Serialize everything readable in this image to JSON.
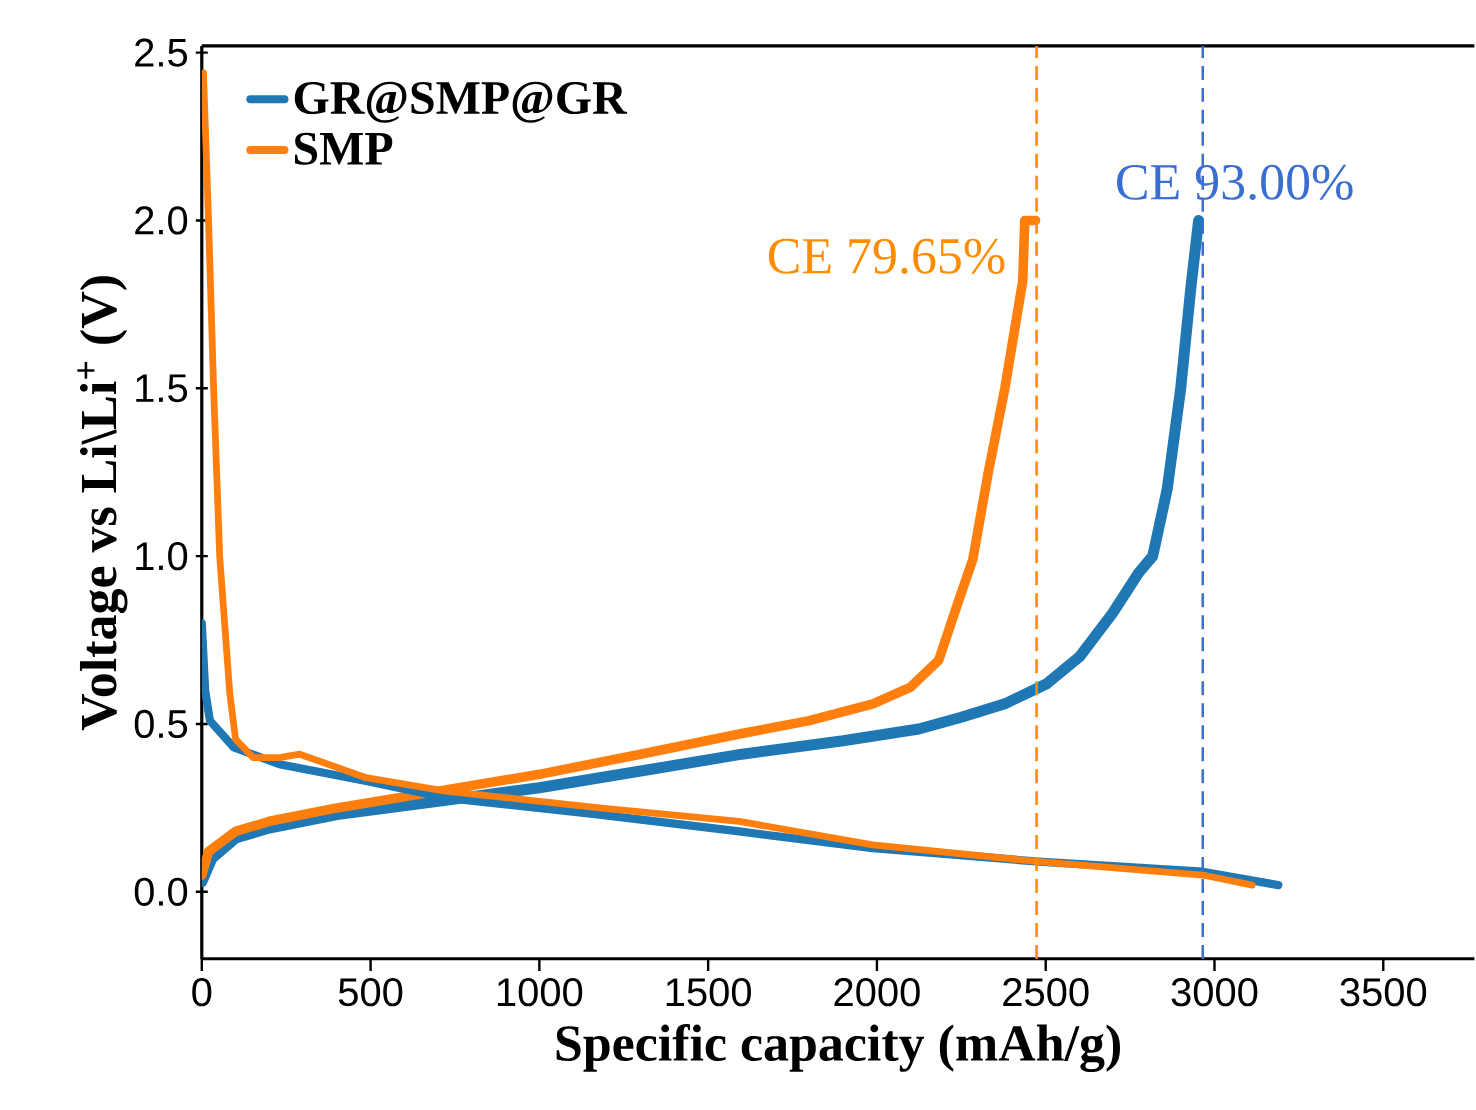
{
  "chart_data": {
    "type": "line",
    "xlabel": "Specific capacity (mAh/g)",
    "ylabel": "Voltage vs Li\\Li$^{+}$ (V)",
    "xlim": [
      0,
      3770
    ],
    "ylim": [
      -0.2,
      2.52
    ],
    "xticks": [
      0,
      500,
      1000,
      1500,
      2000,
      2500,
      3000,
      3500
    ],
    "yticks": [
      {
        "value": 0,
        "label": "0.0"
      },
      0.5,
      {
        "value": 1,
        "label": "1.0"
      },
      1.5,
      {
        "value": 2,
        "label": "2.0"
      },
      2.5
    ],
    "legend": "top left",
    "marker": "none",
    "line_style": "solid",
    "series": [
      {
        "name": "GR@SMP@GR",
        "color": "#1f77b4",
        "x": [
          0,
          30,
          100,
          200,
          400,
          700,
          1000,
          1300,
          1600,
          1900,
          2124,
          2250,
          2379,
          2503,
          2600,
          2698,
          2775,
          2817,
          2860,
          2900,
          2930,
          2953
        ],
        "values": [
          0.03,
          0.1,
          0.16,
          0.19,
          0.23,
          0.27,
          0.31,
          0.36,
          0.41,
          0.45,
          0.485,
          0.52,
          0.56,
          0.62,
          0.7,
          0.83,
          0.95,
          1.0,
          1.2,
          1.5,
          1.8,
          2.0
        ]
      },
      {
        "name": "SMP",
        "color": "#ff7f0e",
        "x": [
          0,
          20,
          100,
          200,
          400,
          700,
          1000,
          1300,
          1592,
          1800,
          1988,
          2100,
          2183,
          2243,
          2284,
          2330,
          2379,
          2432,
          2438,
          2470
        ],
        "values": [
          0.05,
          0.12,
          0.18,
          0.21,
          0.25,
          0.3,
          0.35,
          0.41,
          0.47,
          0.51,
          0.56,
          0.61,
          0.69,
          0.87,
          0.99,
          1.25,
          1.5,
          1.82,
          2.0,
          2.0
        ]
      },
      {
        "color": "#1f77b4",
        "x": [
          0,
          10,
          24,
          95,
          230,
          487,
          722,
          1178,
          1592,
          1988,
          2479,
          2965,
          3189
        ],
        "values": [
          0.8,
          0.6,
          0.51,
          0.43,
          0.38,
          0.33,
          0.28,
          0.23,
          0.18,
          0.13,
          0.09,
          0.06,
          0.02
        ]
      },
      {
        "color": "#ff7f0e",
        "x": [
          5,
          20,
          35,
          53,
          83,
          100,
          152,
          230,
          290,
          487,
          722,
          1178,
          1592,
          1988,
          2479,
          2965,
          3112
        ],
        "values": [
          2.44,
          2.0,
          1.5,
          1.0,
          0.59,
          0.455,
          0.4,
          0.4,
          0.41,
          0.34,
          0.3,
          0.25,
          0.21,
          0.14,
          0.09,
          0.05,
          0.02
        ]
      }
    ],
    "ref_lines": [
      {
        "axis": "x",
        "value": 2473,
        "label": "CE 79.65%",
        "color": "#ff8c00",
        "line_style": "dashed"
      },
      {
        "axis": "x",
        "value": 2965,
        "label": "CE 93.00%",
        "color": "#3a6fd0",
        "line_style": "dashed"
      }
    ]
  }
}
